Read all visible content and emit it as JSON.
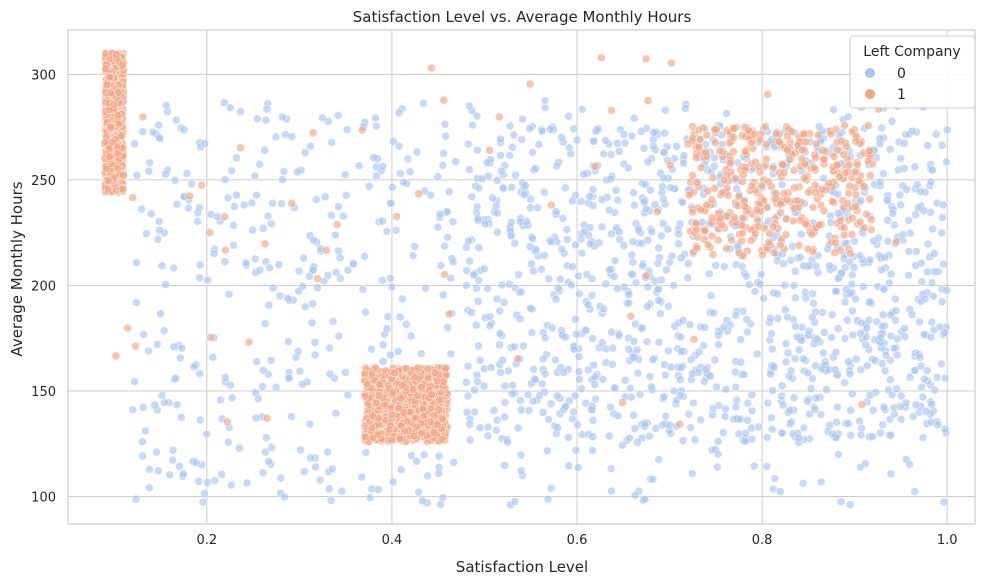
{
  "chart_data": {
    "type": "scatter",
    "title": "Satisfaction Level vs. Average Monthly Hours",
    "xlabel": "Satisfaction Level",
    "ylabel": "Average Monthly Hours",
    "xlim": [
      0.05,
      1.03
    ],
    "ylim": [
      87,
      321
    ],
    "xticks": [
      0.2,
      0.4,
      0.6,
      0.8,
      1.0
    ],
    "xtick_labels": [
      "0.2",
      "0.4",
      "0.6",
      "0.8",
      "1.0"
    ],
    "yticks": [
      100,
      150,
      200,
      250,
      300
    ],
    "ytick_labels": [
      "100",
      "150",
      "200",
      "250",
      "300"
    ],
    "grid": true,
    "legend": {
      "title": "Left Company",
      "placement": "top-right",
      "entries": [
        "0",
        "1"
      ]
    },
    "colors": {
      "0": "#a8c4f5",
      "1": "#f4a582"
    },
    "series": [
      {
        "name": "0",
        "clusters": [
          {
            "x": [
              0.12,
              0.47
            ],
            "y": [
              96,
              287
            ],
            "density": "medium"
          },
          {
            "x": [
              0.48,
              1.0
            ],
            "y": [
              126,
              276
            ],
            "density": "high"
          },
          {
            "x": [
              0.48,
              1.0
            ],
            "y": [
              96,
              288
            ],
            "density": "medium"
          }
        ]
      },
      {
        "name": "1",
        "clusters": [
          {
            "x": [
              0.09,
              0.11
            ],
            "y": [
              244,
              310
            ],
            "density": "high"
          },
          {
            "x": [
              0.37,
              0.46
            ],
            "y": [
              126,
              161
            ],
            "density": "high"
          },
          {
            "x": [
              0.72,
              0.92
            ],
            "y": [
              214,
              276
            ],
            "density": "medium"
          },
          {
            "x": [
              0.09,
              0.98
            ],
            "y": [
              126,
              310
            ],
            "density": "sparse"
          }
        ]
      }
    ]
  }
}
